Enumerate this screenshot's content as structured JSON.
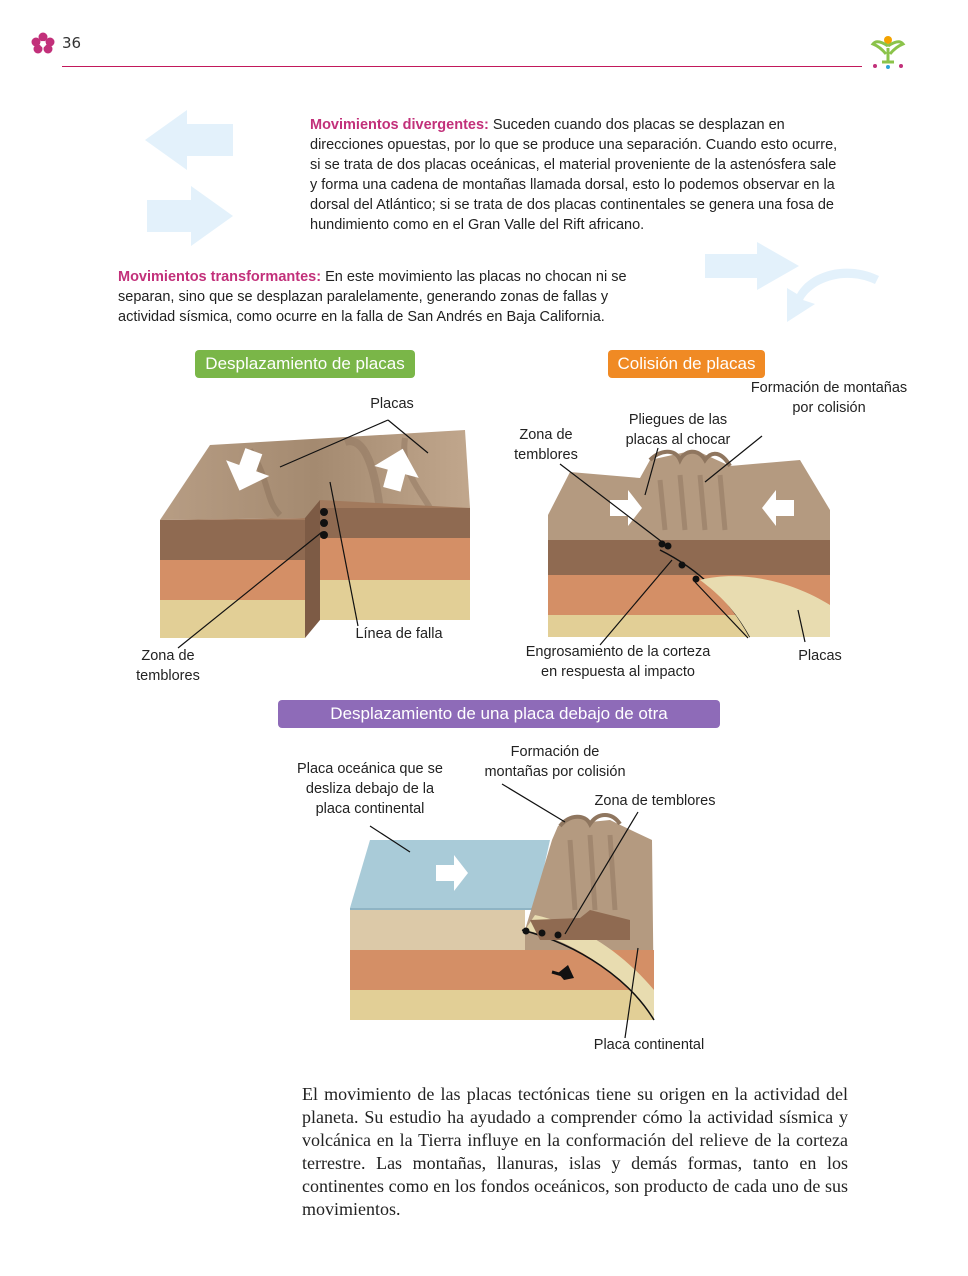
{
  "header": {
    "page_number": "36"
  },
  "divergent": {
    "title": "Movimientos divergentes:",
    "text": " Suceden cuando dos placas se desplazan en direcciones opuestas, por lo que se produce una separación. Cuando esto ocurre, si se trata de dos placas oceánicas, el material proveniente de la astenósfera sale y forma una cadena de montañas llamada dorsal, esto lo podemos observar en la dorsal del Atlántico; si se trata de dos placas continentales se genera una fosa de hundimiento como en el Gran Valle del Rift africano."
  },
  "transform": {
    "title": "Movimientos transformantes:",
    "text": " En este movimiento las placas no chocan ni se separan, sino que se desplazan paralelamente, generando zonas de fallas y actividad sísmica, como ocurre en la falla de San Andrés en Baja California."
  },
  "diagram1": {
    "title": "Desplazamiento de placas",
    "color": "#7ab648",
    "labels": {
      "placas": "Placas",
      "linea_falla": "Línea de falla",
      "zona_l1": "Zona de",
      "zona_l2": "temblores"
    }
  },
  "diagram2": {
    "title": "Colisión de placas",
    "color": "#f08a24",
    "labels": {
      "formacion_l1": "Formación de montañas",
      "formacion_l2": "por colisión",
      "pliegues_l1": "Pliegues de las",
      "pliegues_l2": "placas al chocar",
      "zona_l1": "Zona de",
      "zona_l2": "temblores",
      "engros_l1": "Engrosamiento de la corteza",
      "engros_l2": "en respuesta al impacto",
      "placas": "Placas"
    }
  },
  "diagram3": {
    "title": "Desplazamiento de una placa debajo de otra",
    "color": "#8e6bb8",
    "labels": {
      "oceanica_l1": "Placa oceánica que se",
      "oceanica_l2": "desliza debajo de la",
      "oceanica_l3": "placa continental",
      "formacion_l1": "Formación de",
      "formacion_l2": "montañas por colisión",
      "zona": "Zona de temblores",
      "continental": "Placa continental"
    }
  },
  "closing": {
    "text": "El movimiento de las placas tectónicas tiene su origen en la actividad del planeta. Su estudio ha ayudado a comprender cómo la actividad sísmica y volcánica en la Tierra influye en la conformación del relieve de la corteza terrestre. Las montañas, llanuras, islas y demás formas, tanto en los continentes como en los fondos oceánicos, son producto de cada uno de sus movimientos."
  },
  "colors": {
    "accent": "#c2307a",
    "rule": "#c2185b",
    "arrow_light": "#e3f1fb"
  }
}
